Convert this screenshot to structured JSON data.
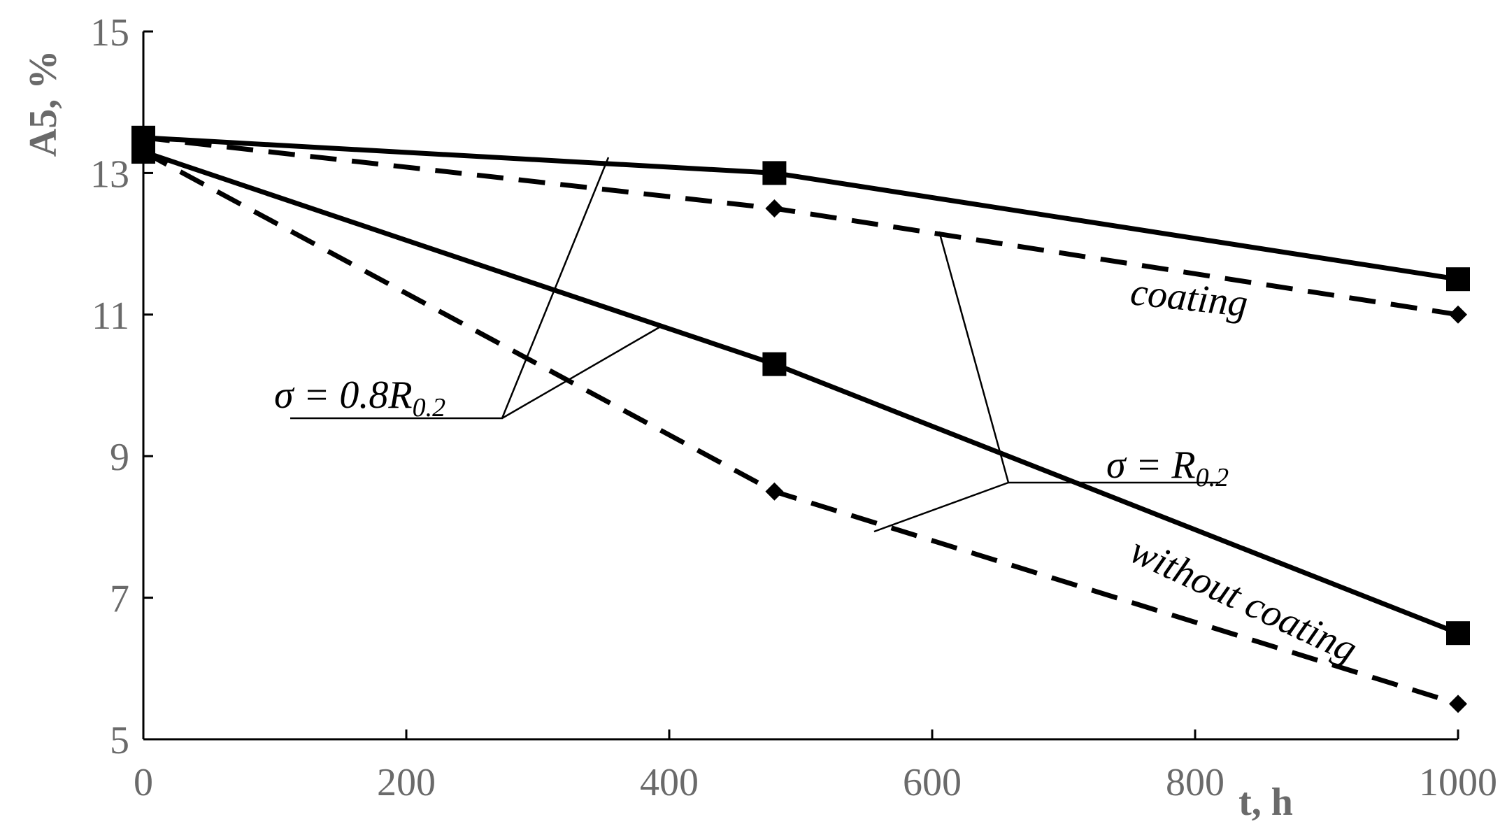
{
  "chart_data": {
    "type": "line",
    "xlabel": "t, h",
    "ylabel": "A5,  %",
    "xlim": [
      0,
      1000
    ],
    "ylim": [
      5,
      15
    ],
    "xticks": [
      0,
      200,
      400,
      600,
      800,
      1000
    ],
    "yticks": [
      5,
      7,
      9,
      11,
      13,
      15
    ],
    "grid": false,
    "series": [
      {
        "group": "coating",
        "stress": "σ = R0.2",
        "style": "solid",
        "marker": "square",
        "x": [
          0,
          480,
          1000
        ],
        "y": [
          13.5,
          13.0,
          11.5
        ]
      },
      {
        "group": "coating",
        "stress": "σ = 0.8R0.2",
        "style": "dashed",
        "marker": "diamond",
        "x": [
          0,
          480,
          1000
        ],
        "y": [
          13.5,
          12.5,
          11.0
        ]
      },
      {
        "group": "without coating",
        "stress": "σ = R0.2",
        "style": "solid",
        "marker": "square",
        "x": [
          0,
          480,
          1000
        ],
        "y": [
          13.3,
          10.3,
          6.5
        ]
      },
      {
        "group": "without coating",
        "stress": "σ = 0.8R0.2",
        "style": "dashed",
        "marker": "diamond",
        "x": [
          0,
          480,
          1000
        ],
        "y": [
          13.3,
          8.5,
          5.5
        ]
      }
    ],
    "annotations": {
      "coating": "coating",
      "without_coating": "without coating",
      "stress_08": {
        "main": "σ = 0.8R",
        "sub": "0.2"
      },
      "stress_10": {
        "main": "σ = R",
        "sub": "0.2"
      }
    }
  }
}
